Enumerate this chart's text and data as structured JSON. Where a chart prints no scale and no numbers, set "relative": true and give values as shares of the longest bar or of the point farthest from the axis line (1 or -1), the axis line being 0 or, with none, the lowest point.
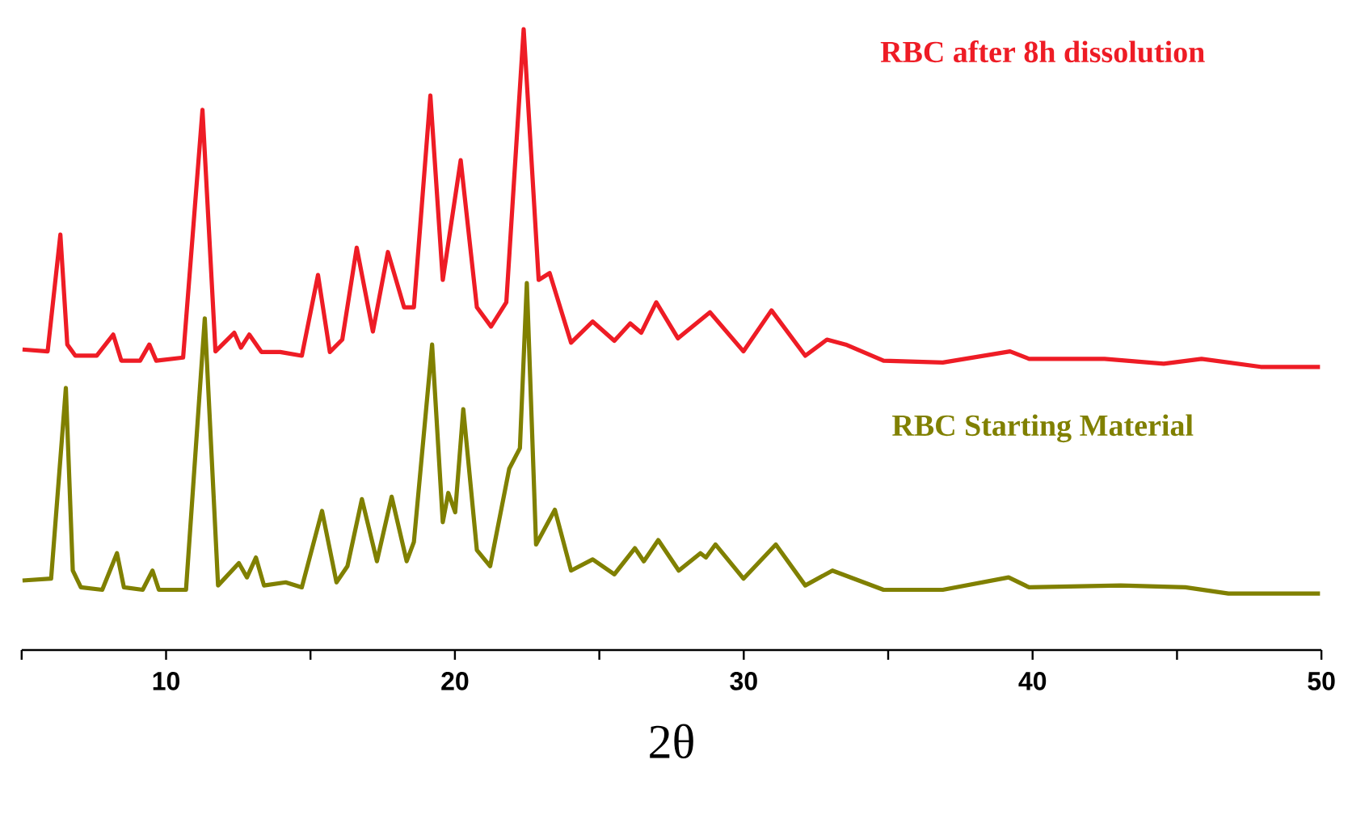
{
  "chart_data": {
    "type": "line",
    "relative": true,
    "xlabel": "2θ",
    "xlim": [
      5,
      50
    ],
    "xticks": [
      {
        "value": 5,
        "label": null
      },
      10,
      {
        "value": 15,
        "label": null
      },
      20,
      {
        "value": 25,
        "label": null
      },
      30,
      {
        "value": 35,
        "label": null
      },
      40,
      {
        "value": 45,
        "label": null
      },
      50
    ],
    "tick_labels": "x",
    "grid": false,
    "legend": false,
    "marker": "none",
    "line_style": "solid",
    "series": [
      {
        "name": "RBC after 8h dissolution",
        "color": "#ee1c25",
        "x": [
          5.03,
          5.9,
          6.34,
          6.58,
          6.86,
          7.6,
          8.17,
          8.45,
          9.1,
          9.42,
          9.66,
          10.59,
          11.26,
          11.71,
          12.36,
          12.59,
          12.88,
          13.3,
          13.95,
          14.7,
          15.26,
          15.67,
          16.1,
          16.6,
          17.16,
          17.68,
          18.24,
          18.58,
          19.15,
          19.58,
          20.2,
          20.76,
          21.25,
          21.78,
          22.38,
          22.9,
          23.28,
          24.02,
          24.77,
          25.52,
          26.07,
          26.45,
          26.97,
          27.72,
          28.83,
          29.99,
          30.96,
          32.13,
          32.88,
          33.53,
          34.84,
          36.89,
          39.22,
          39.88,
          42.49,
          44.54,
          45.85,
          47.9,
          49.95
        ],
        "values": [
          0.484,
          0.481,
          0.669,
          0.492,
          0.474,
          0.474,
          0.508,
          0.466,
          0.466,
          0.492,
          0.466,
          0.471,
          0.87,
          0.481,
          0.511,
          0.487,
          0.508,
          0.48,
          0.48,
          0.474,
          0.604,
          0.48,
          0.5,
          0.648,
          0.513,
          0.641,
          0.552,
          0.552,
          0.893,
          0.596,
          0.789,
          0.552,
          0.521,
          0.56,
          1.0,
          0.596,
          0.607,
          0.495,
          0.529,
          0.498,
          0.526,
          0.511,
          0.56,
          0.502,
          0.544,
          0.481,
          0.547,
          0.474,
          0.5,
          0.492,
          0.466,
          0.463,
          0.481,
          0.469,
          0.469,
          0.461,
          0.469,
          0.456,
          0.456
        ]
      },
      {
        "name": "RBC Starting Material",
        "color": "#808000",
        "x": [
          5.03,
          6.02,
          6.53,
          6.77,
          7.05,
          7.79,
          8.3,
          8.54,
          9.19,
          9.53,
          9.75,
          10.69,
          11.34,
          11.8,
          12.52,
          12.8,
          13.11,
          13.39,
          14.14,
          14.7,
          15.4,
          15.9,
          16.28,
          16.78,
          17.3,
          17.81,
          18.33,
          18.58,
          19.21,
          19.58,
          19.77,
          20.01,
          20.29,
          20.76,
          21.22,
          21.88,
          22.25,
          22.49,
          22.81,
          23.46,
          24.02,
          24.77,
          25.52,
          26.23,
          26.54,
          27.04,
          27.75,
          28.5,
          28.69,
          29.02,
          29.99,
          31.11,
          32.13,
          33.07,
          34.84,
          36.89,
          39.17,
          39.88,
          43.05,
          45.29,
          46.78,
          49.95
        ],
        "values": [
          0.112,
          0.115,
          0.422,
          0.128,
          0.101,
          0.097,
          0.156,
          0.101,
          0.097,
          0.128,
          0.097,
          0.097,
          0.534,
          0.104,
          0.14,
          0.117,
          0.149,
          0.104,
          0.109,
          0.101,
          0.224,
          0.109,
          0.135,
          0.243,
          0.143,
          0.247,
          0.143,
          0.174,
          0.492,
          0.206,
          0.253,
          0.222,
          0.388,
          0.161,
          0.135,
          0.292,
          0.325,
          0.591,
          0.17,
          0.226,
          0.128,
          0.146,
          0.122,
          0.164,
          0.143,
          0.177,
          0.128,
          0.156,
          0.149,
          0.17,
          0.115,
          0.17,
          0.104,
          0.128,
          0.097,
          0.097,
          0.117,
          0.101,
          0.104,
          0.101,
          0.091,
          0.091
        ]
      }
    ]
  }
}
